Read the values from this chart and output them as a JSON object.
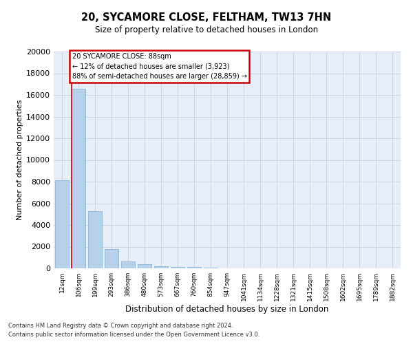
{
  "title1": "20, SYCAMORE CLOSE, FELTHAM, TW13 7HN",
  "title2": "Size of property relative to detached houses in London",
  "xlabel": "Distribution of detached houses by size in London",
  "ylabel": "Number of detached properties",
  "categories": [
    "12sqm",
    "106sqm",
    "199sqm",
    "293sqm",
    "386sqm",
    "480sqm",
    "573sqm",
    "667sqm",
    "760sqm",
    "854sqm",
    "947sqm",
    "1041sqm",
    "1134sqm",
    "1228sqm",
    "1321sqm",
    "1415sqm",
    "1508sqm",
    "1602sqm",
    "1695sqm",
    "1789sqm",
    "1882sqm"
  ],
  "values": [
    8100,
    16600,
    5300,
    1800,
    650,
    350,
    200,
    150,
    130,
    50,
    0,
    0,
    0,
    0,
    0,
    0,
    0,
    0,
    0,
    0,
    0
  ],
  "bar_color": "#b8d0ea",
  "bar_edge_color": "#7aafd4",
  "grid_color": "#c8d4e8",
  "background_color": "#e8eef8",
  "annotation_line1": "20 SYCAMORE CLOSE: 88sqm",
  "annotation_line2": "← 12% of detached houses are smaller (3,923)",
  "annotation_line3": "88% of semi-detached houses are larger (28,859) →",
  "annotation_box_color": "#cc0000",
  "vline_color": "#cc0000",
  "ylim": [
    0,
    20000
  ],
  "yticks": [
    0,
    2000,
    4000,
    6000,
    8000,
    10000,
    12000,
    14000,
    16000,
    18000,
    20000
  ],
  "footnote1": "Contains HM Land Registry data © Crown copyright and database right 2024.",
  "footnote2": "Contains public sector information licensed under the Open Government Licence v3.0."
}
